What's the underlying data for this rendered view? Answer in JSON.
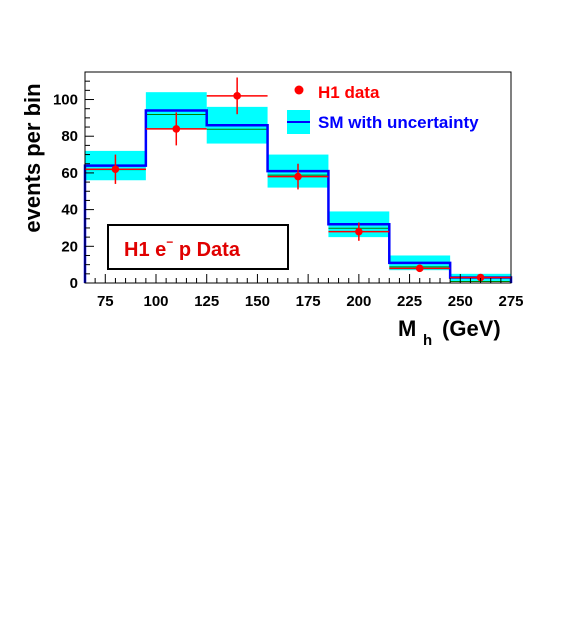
{
  "chart_data": {
    "type": "bar",
    "title": "",
    "xlabel": "M h (GeV)",
    "xlabel_main": "M",
    "xlabel_sub": "h",
    "xlabel_unit": "(GeV)",
    "ylabel": "events per bin",
    "xlim": [
      65,
      275
    ],
    "ylim": [
      0,
      115
    ],
    "xticks": [
      75,
      100,
      125,
      150,
      175,
      200,
      225,
      250,
      275
    ],
    "yticks": [
      0,
      20,
      40,
      60,
      80,
      100
    ],
    "grid": false,
    "legend_position": "top-right",
    "annotation": {
      "main": "H1 e",
      "superscript": "−",
      "rest": " p Data"
    },
    "bin_edges": [
      65,
      95,
      125,
      155,
      185,
      215,
      245,
      275
    ],
    "series": [
      {
        "name": "H1 data",
        "kind": "points_with_errors",
        "color": "#ff0000",
        "x": [
          80,
          110,
          140,
          170,
          200,
          230,
          260
        ],
        "x_err": [
          15,
          15,
          15,
          15,
          15,
          15,
          15
        ],
        "y": [
          62,
          84,
          102,
          58,
          28,
          8,
          3
        ],
        "y_err": [
          8,
          9,
          10,
          7,
          5,
          2,
          1.5
        ]
      },
      {
        "name": "SM with uncertainty",
        "kind": "step_histogram_with_band",
        "line_color": "#0000ff",
        "band_color": "#00ffff",
        "values": [
          64,
          94,
          86,
          61,
          32,
          11,
          3
        ],
        "band_low": [
          56,
          84,
          76,
          52,
          25,
          7,
          1
        ],
        "band_high": [
          72,
          104,
          96,
          70,
          39,
          15,
          5
        ]
      }
    ],
    "colors": {
      "data": "#ff0000",
      "sm_line": "#0000ff",
      "sm_band": "#00ffff",
      "sm_inner": "#008000"
    }
  }
}
